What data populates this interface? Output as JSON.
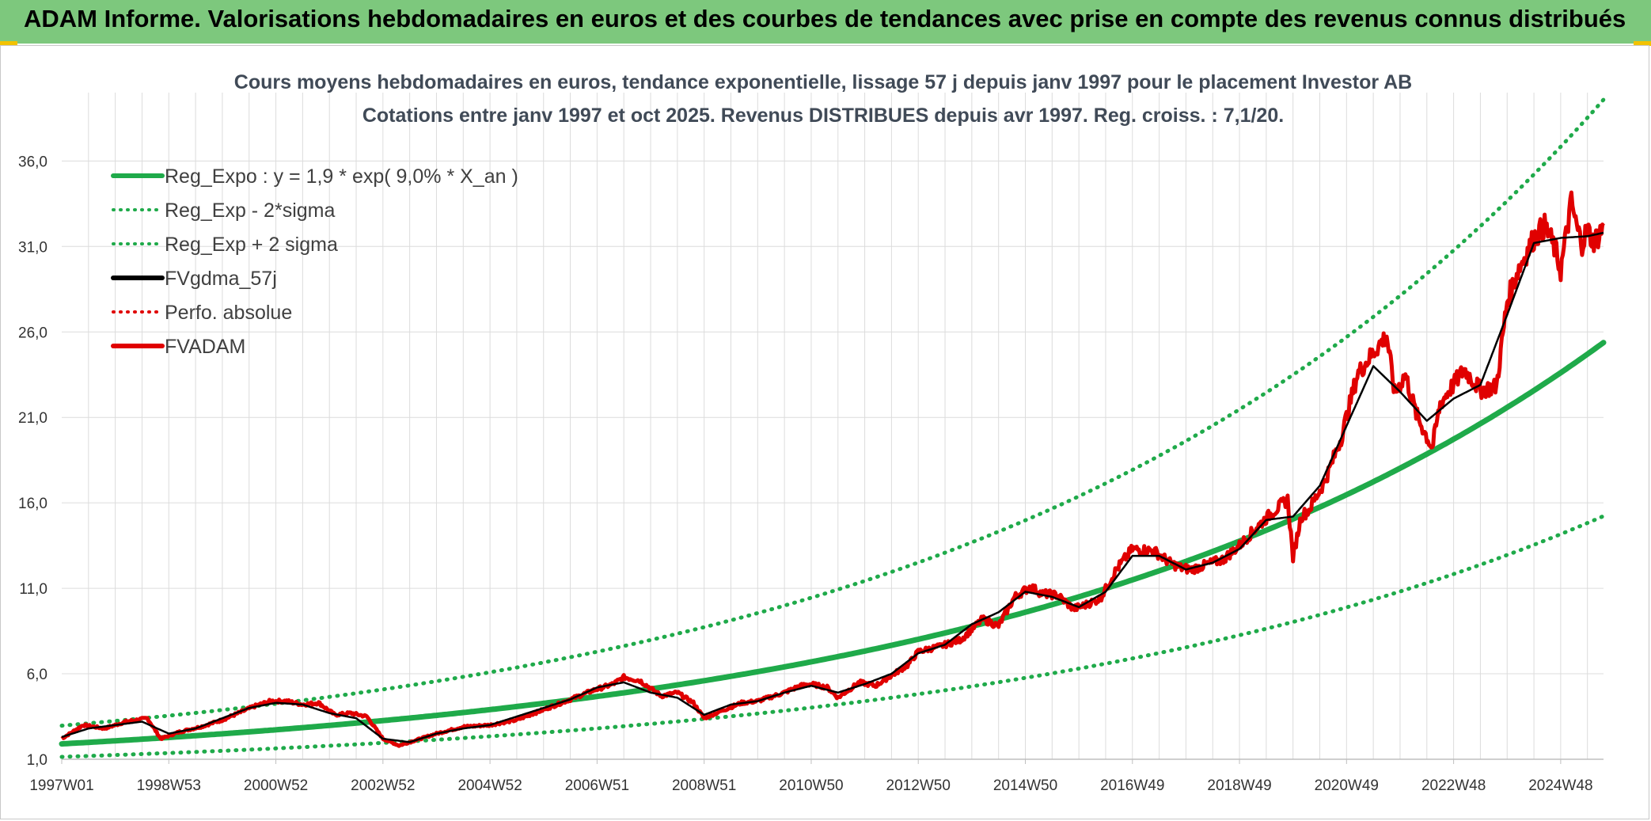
{
  "banner": {
    "title": "ADAM Informe. Valorisations hebdomadaires en euros et des courbes de tendances avec prise en compte des revenus connus distribués",
    "color": "#7dc87d"
  },
  "chart_data": {
    "type": "line",
    "title": "Cours moyens hebdomadaires en euros, tendance exponentielle, lissage 57 j depuis janv 1997 pour le placement Investor AB",
    "subtitle": "Cotations entre janv 1997 et oct 2025. Revenus DISTRIBUES depuis avr 1997. Reg. croiss. : 7,1/20.",
    "xlabel": "",
    "ylabel": "",
    "xlim": [
      1997.0,
      2025.8
    ],
    "ylim": [
      1.0,
      40.0
    ],
    "yticks": [
      1.0,
      6.0,
      11.0,
      16.0,
      21.0,
      26.0,
      31.0,
      36.0
    ],
    "ytick_labels": [
      "1,0",
      "6,0",
      "11,0",
      "16,0",
      "21,0",
      "26,0",
      "31,0",
      "36,0"
    ],
    "xtick_positions": [
      1997.0,
      1999.0,
      2001.0,
      2003.0,
      2005.0,
      2007.0,
      2009.0,
      2011.0,
      2013.0,
      2015.0,
      2017.0,
      2019.0,
      2021.0,
      2023.0,
      2025.0
    ],
    "xtick_labels": [
      "1997W01",
      "1998W53",
      "2000W52",
      "2002W52",
      "2004W52",
      "2006W51",
      "2008W51",
      "2010W50",
      "2012W50",
      "2014W50",
      "2016W49",
      "2018W49",
      "2020W49",
      "2022W48",
      "2024W48"
    ],
    "grid": true,
    "legend": "top-left",
    "legend_entries": [
      {
        "label": "Reg_Expo : y = 1,9 * exp( 9,0% *  X_an )",
        "color": "#1faa4a",
        "style": "solid"
      },
      {
        "label": "Reg_Exp - 2*sigma",
        "color": "#1faa4a",
        "style": "dotted"
      },
      {
        "label": "Reg_Exp + 2 sigma",
        "color": "#1faa4a",
        "style": "dotted"
      },
      {
        "label": "FVgdma_57j",
        "color": "#000000",
        "style": "solid"
      },
      {
        "label": "Perfo. absolue",
        "color": "#e00000",
        "style": "dotted"
      },
      {
        "label": "FVADAM",
        "color": "#e00000",
        "style": "solid"
      }
    ],
    "regression": {
      "a": 1.9,
      "b": 0.09,
      "factor_low": 0.6,
      "factor_high": 1.56,
      "start_year": 1997.0,
      "clip_max": 40.0
    },
    "series": [
      {
        "name": "FVADAM",
        "color": "#e00000",
        "x": [
          1997.0,
          1997.4,
          1997.8,
          1998.2,
          1998.6,
          1998.85,
          1999.2,
          1999.6,
          2000.0,
          2000.3,
          2000.6,
          2000.9,
          2001.2,
          2001.5,
          2001.8,
          2002.1,
          2002.4,
          2002.7,
          2003.0,
          2003.3,
          2003.6,
          2004.0,
          2004.5,
          2005.0,
          2005.5,
          2006.0,
          2006.5,
          2006.9,
          2007.3,
          2007.5,
          2007.8,
          2008.2,
          2008.5,
          2008.8,
          2009.0,
          2009.3,
          2009.7,
          2010.0,
          2010.5,
          2010.8,
          2011.0,
          2011.3,
          2011.5,
          2011.9,
          2012.2,
          2012.5,
          2012.8,
          2013.0,
          2013.4,
          2013.8,
          2014.2,
          2014.5,
          2014.8,
          2015.1,
          2015.3,
          2015.6,
          2015.9,
          2016.1,
          2016.4,
          2016.7,
          2017.0,
          2017.4,
          2017.7,
          2017.9,
          2018.1,
          2018.4,
          2018.7,
          2019.0,
          2019.3,
          2019.6,
          2019.9,
          2020.0,
          2020.15,
          2020.3,
          2020.6,
          2020.9,
          2021.2,
          2021.5,
          2021.75,
          2021.9,
          2022.1,
          2022.3,
          2022.6,
          2022.75,
          2022.9,
          2023.2,
          2023.5,
          2023.8,
          2024.0,
          2024.2,
          2024.5,
          2024.7,
          2024.9,
          2025.0,
          2025.1,
          2025.2,
          2025.3,
          2025.4,
          2025.5,
          2025.6,
          2025.7,
          2025.8
        ],
        "values": [
          2.2,
          3.0,
          2.8,
          3.2,
          3.4,
          2.2,
          2.6,
          2.9,
          3.3,
          3.7,
          4.1,
          4.4,
          4.4,
          4.2,
          4.3,
          3.6,
          3.7,
          3.5,
          2.2,
          1.8,
          2.1,
          2.5,
          2.9,
          3.0,
          3.3,
          3.9,
          4.5,
          5.0,
          5.4,
          5.8,
          5.6,
          4.7,
          4.9,
          4.3,
          3.4,
          3.8,
          4.3,
          4.4,
          4.9,
          5.3,
          5.4,
          5.2,
          4.6,
          5.5,
          5.3,
          5.9,
          6.5,
          7.3,
          7.6,
          8.0,
          9.2,
          8.8,
          10.5,
          11.1,
          10.7,
          10.6,
          9.8,
          10.0,
          10.4,
          12.1,
          13.3,
          13.2,
          12.5,
          12.2,
          12.1,
          12.4,
          12.7,
          13.5,
          14.5,
          15.4,
          16.2,
          12.8,
          15.2,
          15.6,
          17.3,
          19.8,
          23.5,
          24.8,
          25.8,
          22.4,
          23.5,
          21.2,
          19.2,
          21.8,
          22.5,
          23.8,
          22.6,
          22.8,
          27.8,
          29.6,
          31.5,
          32.2,
          30.8,
          29.6,
          31.6,
          33.6,
          32.1,
          31.2,
          32.0,
          31.3,
          31.6,
          32.2
        ]
      },
      {
        "name": "FVgdma_57j",
        "color": "#000000",
        "x": [
          1997.0,
          1997.5,
          1998.0,
          1998.5,
          1999.0,
          1999.5,
          2000.0,
          2000.5,
          2001.0,
          2001.5,
          2002.0,
          2002.5,
          2003.0,
          2003.5,
          2004.0,
          2004.5,
          2005.0,
          2005.5,
          2006.0,
          2006.5,
          2007.0,
          2007.5,
          2008.0,
          2008.5,
          2009.0,
          2009.5,
          2010.0,
          2010.5,
          2011.0,
          2011.5,
          2012.0,
          2012.5,
          2013.0,
          2013.5,
          2014.0,
          2014.5,
          2015.0,
          2015.5,
          2016.0,
          2016.5,
          2017.0,
          2017.5,
          2018.0,
          2018.5,
          2019.0,
          2019.5,
          2020.0,
          2020.5,
          2021.0,
          2021.5,
          2022.0,
          2022.5,
          2023.0,
          2023.5,
          2024.0,
          2024.5,
          2025.0,
          2025.5,
          2025.8
        ],
        "values": [
          2.3,
          2.8,
          3.0,
          3.2,
          2.5,
          2.8,
          3.4,
          4.0,
          4.3,
          4.2,
          3.7,
          3.4,
          2.2,
          2.0,
          2.5,
          2.8,
          3.0,
          3.5,
          4.0,
          4.5,
          5.2,
          5.5,
          4.9,
          4.6,
          3.6,
          4.2,
          4.4,
          4.9,
          5.3,
          4.9,
          5.4,
          6.0,
          7.2,
          7.7,
          8.9,
          9.6,
          10.8,
          10.5,
          9.9,
          10.8,
          12.9,
          12.9,
          12.1,
          12.5,
          13.3,
          15.0,
          15.2,
          17.0,
          20.5,
          24.0,
          22.5,
          20.8,
          22.1,
          22.9,
          27.0,
          31.2,
          31.5,
          31.6,
          31.8
        ]
      }
    ]
  }
}
